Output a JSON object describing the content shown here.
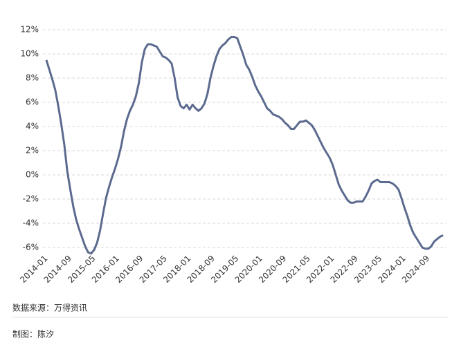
{
  "chart_data": {
    "type": "line",
    "categories": [
      "2014-01",
      null,
      null,
      null,
      null,
      null,
      null,
      null,
      "2014-09",
      null,
      null,
      null,
      null,
      null,
      null,
      null,
      "2015-05",
      null,
      null,
      null,
      null,
      null,
      null,
      null,
      "2016-01",
      null,
      null,
      null,
      null,
      null,
      null,
      null,
      "2016-09",
      null,
      null,
      null,
      null,
      null,
      null,
      null,
      "2017-05",
      null,
      null,
      null,
      null,
      null,
      null,
      null,
      "2018-01",
      null,
      null,
      null,
      null,
      null,
      null,
      null,
      "2018-09",
      null,
      null,
      null,
      null,
      null,
      null,
      null,
      "2019-05",
      null,
      null,
      null,
      null,
      null,
      null,
      null,
      "2020-01",
      null,
      null,
      null,
      null,
      null,
      null,
      null,
      "2020-09",
      null,
      null,
      null,
      null,
      null,
      null,
      null,
      "2021-05",
      null,
      null,
      null,
      null,
      null,
      null,
      null,
      "2022-01",
      null,
      null,
      null,
      null,
      null,
      null,
      null,
      "2022-09",
      null,
      null,
      null,
      null,
      null,
      null,
      null,
      "2023-05",
      null,
      null,
      null,
      null,
      null,
      null,
      null,
      "2024-01",
      null,
      null,
      null,
      null,
      null,
      null,
      null,
      "2024-09",
      null,
      null,
      null,
      null,
      null
    ],
    "values": [
      9.5,
      8.7,
      7.9,
      7.0,
      5.7,
      4.2,
      2.5,
      0.3,
      -1.2,
      -2.6,
      -3.7,
      -4.5,
      -5.2,
      -5.9,
      -6.4,
      -6.5,
      -6.2,
      -5.6,
      -4.6,
      -3.2,
      -1.9,
      -1.0,
      -0.2,
      0.5,
      1.3,
      2.3,
      3.6,
      4.6,
      5.3,
      5.8,
      6.5,
      7.6,
      9.3,
      10.4,
      10.8,
      10.8,
      10.7,
      10.6,
      10.2,
      9.8,
      9.7,
      9.5,
      9.2,
      8.0,
      6.4,
      5.7,
      5.5,
      5.8,
      5.4,
      5.8,
      5.5,
      5.3,
      5.5,
      5.9,
      6.7,
      8.0,
      9.0,
      9.8,
      10.4,
      10.7,
      10.9,
      11.2,
      11.4,
      11.4,
      11.3,
      10.6,
      9.9,
      9.1,
      8.7,
      8.1,
      7.4,
      6.9,
      6.5,
      6.0,
      5.5,
      5.3,
      5.0,
      4.9,
      4.8,
      4.6,
      4.3,
      4.1,
      3.8,
      3.8,
      4.1,
      4.4,
      4.4,
      4.5,
      4.3,
      4.1,
      3.7,
      3.2,
      2.7,
      2.2,
      1.8,
      1.4,
      0.8,
      0.0,
      -0.8,
      -1.3,
      -1.7,
      -2.1,
      -2.3,
      -2.3,
      -2.2,
      -2.2,
      -2.2,
      -1.8,
      -1.3,
      -0.7,
      -0.5,
      -0.4,
      -0.6,
      -0.6,
      -0.6,
      -0.6,
      -0.7,
      -0.9,
      -1.2,
      -1.9,
      -2.7,
      -3.4,
      -4.2,
      -4.8,
      -5.2,
      -5.6,
      -6.0,
      -6.1,
      -6.1,
      -5.9,
      -5.5,
      -5.3,
      -5.1,
      -5.0
    ],
    "color": "#5b6a8e",
    "ylim": [
      -7,
      12
    ],
    "yticks": [
      {
        "value": -6,
        "label": "-6%"
      },
      {
        "value": -4,
        "label": "-4%"
      },
      {
        "value": -2,
        "label": "-2%"
      },
      {
        "value": 0,
        "label": "0%"
      },
      {
        "value": 2,
        "label": "2%"
      },
      {
        "value": 4,
        "label": "4%"
      },
      {
        "value": 6,
        "label": "6%"
      },
      {
        "value": 8,
        "label": "8%"
      },
      {
        "value": 10,
        "label": "10%"
      },
      {
        "value": 12,
        "label": "12%"
      }
    ],
    "grid": true
  },
  "source": "数据来源：万得资讯",
  "credit": "制图：陈汐"
}
